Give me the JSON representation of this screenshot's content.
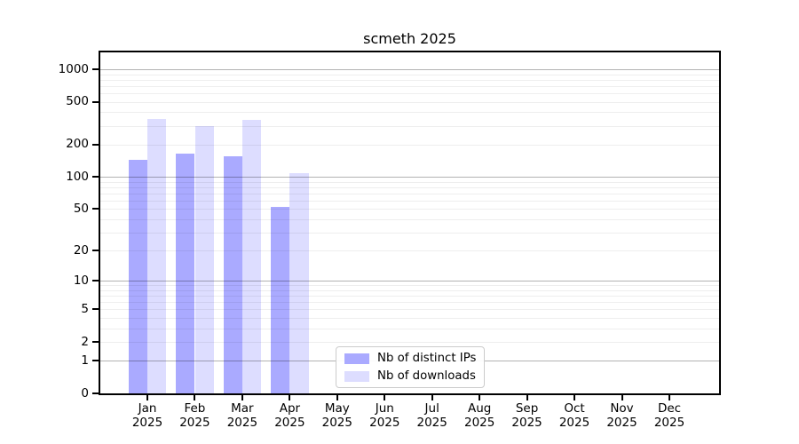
{
  "chart_data": {
    "type": "bar",
    "title": "scmeth 2025",
    "year_label": "2025",
    "categories": [
      "Jan",
      "Feb",
      "Mar",
      "Apr",
      "May",
      "Jun",
      "Jul",
      "Aug",
      "Sep",
      "Oct",
      "Nov",
      "Dec"
    ],
    "series": [
      {
        "name": "Nb of distinct IPs",
        "key": "distinct-ips",
        "color": "#aaaaff",
        "values": [
          145,
          166,
          155,
          52,
          null,
          null,
          null,
          null,
          null,
          null,
          null,
          null
        ]
      },
      {
        "name": "Nb of downloads",
        "key": "downloads",
        "color": "#ddddff",
        "values": [
          345,
          300,
          339,
          109,
          null,
          null,
          null,
          null,
          null,
          null,
          null,
          null
        ]
      }
    ],
    "yaxis": {
      "scale": "log10(1+x)",
      "ticks": [
        0,
        1,
        2,
        5,
        10,
        20,
        50,
        100,
        200,
        500,
        1000
      ],
      "range": [
        0,
        1430
      ],
      "major_gridlines": [
        1,
        10,
        100,
        1000
      ],
      "minor_gridline_multiples": [
        2,
        3,
        4,
        5,
        6,
        7,
        8,
        9
      ]
    },
    "grid": "on",
    "legend_position": "lower-center"
  }
}
